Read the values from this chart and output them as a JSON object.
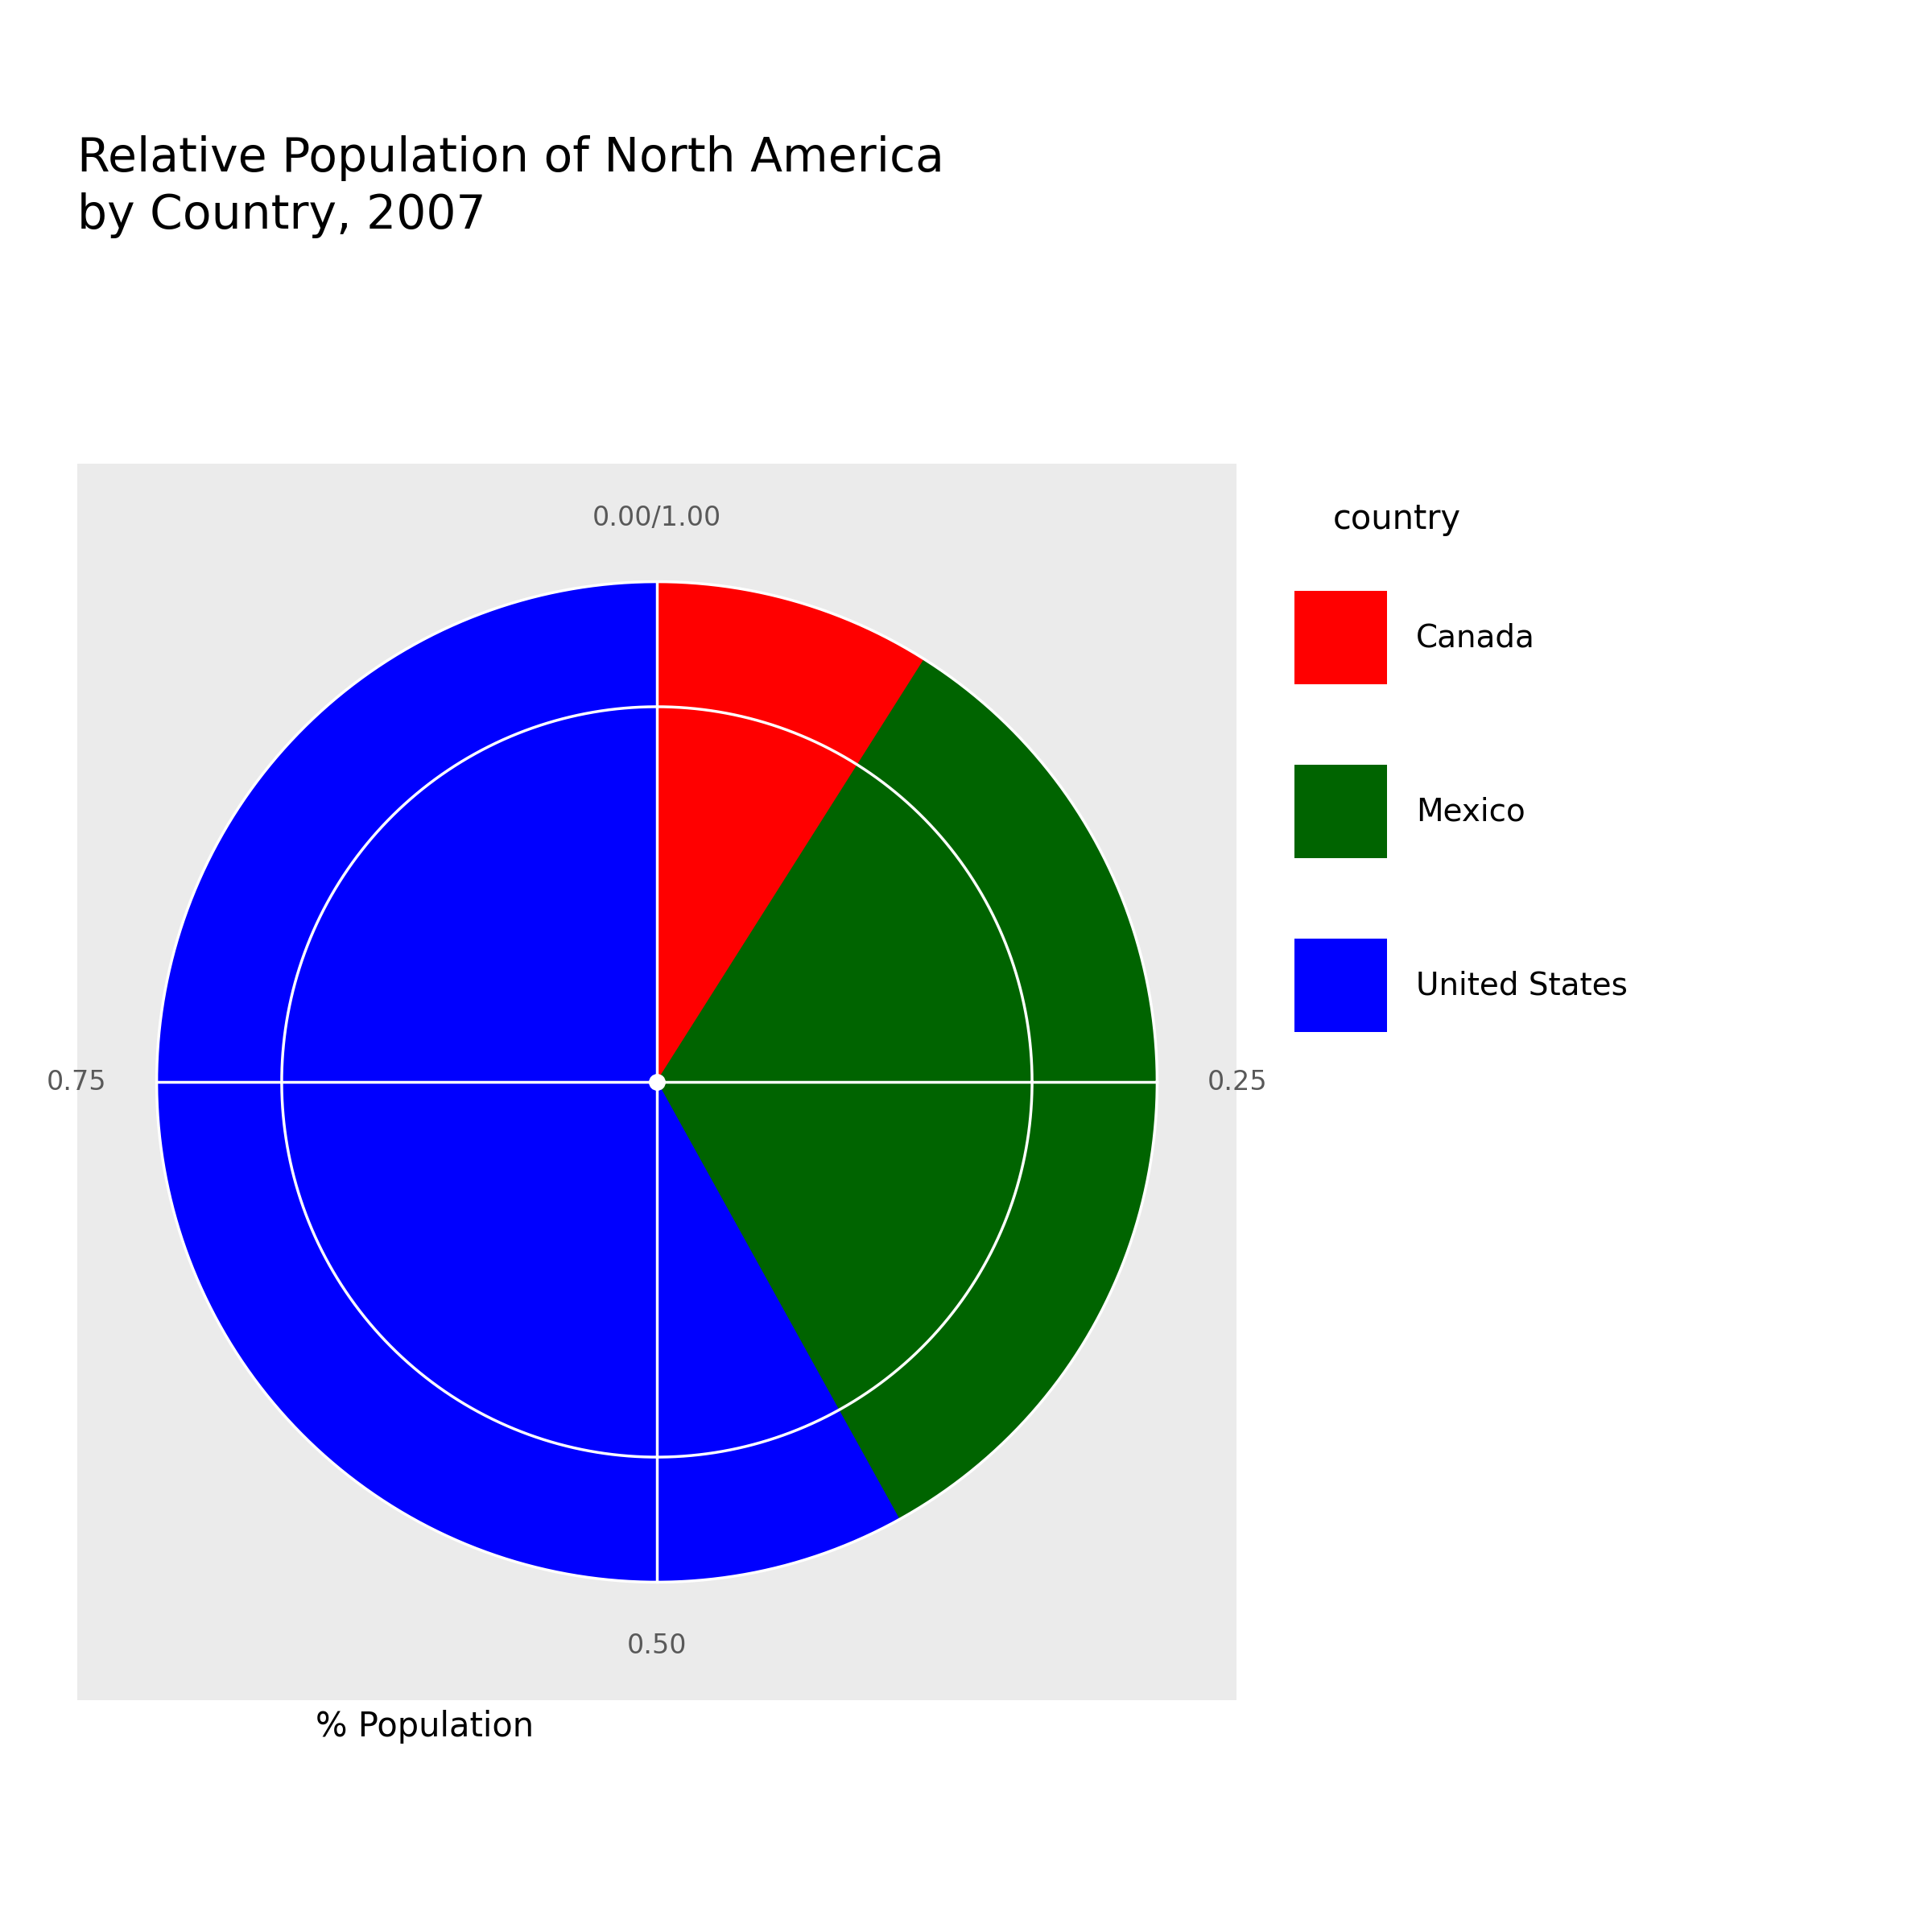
{
  "title": "Relative Population of North America\nby Country, 2007",
  "xlabel": "% Population",
  "countries": [
    "Canada",
    "Mexico",
    "United States"
  ],
  "values": [
    0.0898,
    0.3297,
    0.5805
  ],
  "colors": [
    "#FF0000",
    "#006400",
    "#0000FF"
  ],
  "legend_title": "country",
  "background_color": "#EBEBEB",
  "title_fontsize": 42,
  "label_fontsize": 24,
  "legend_fontsize": 28,
  "legend_title_fontsize": 30,
  "center_dot_color": "#FFFFFF",
  "grid_color": "#FFFFFF",
  "text_color": "#595959"
}
